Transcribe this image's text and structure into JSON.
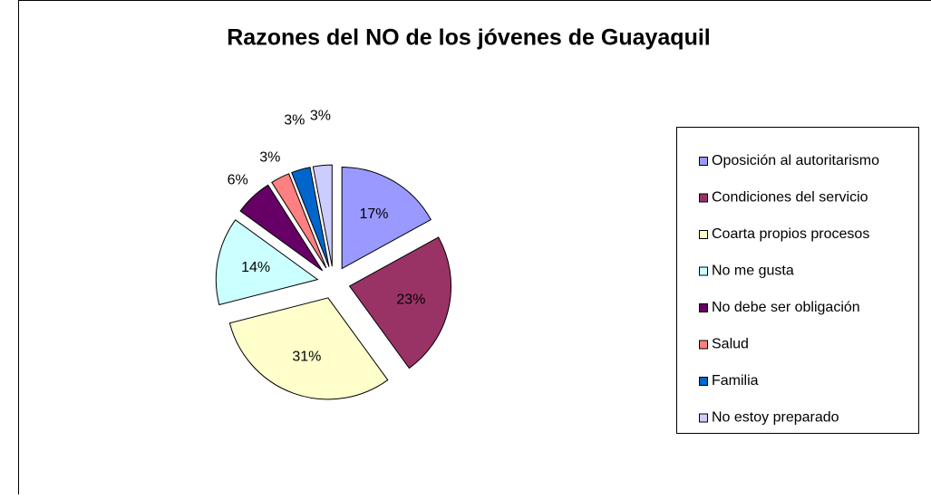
{
  "chart_data": {
    "type": "pie",
    "title": "Razones del NO de los jóvenes de Guayaquil",
    "categories": [
      "Oposición al autoritarismo",
      "Condiciones del servicio",
      "Coarta propios procesos",
      "No me gusta",
      "No debe ser obligación",
      "Salud",
      "Familia",
      "No estoy preparado"
    ],
    "values": [
      17,
      23,
      31,
      14,
      6,
      3,
      3,
      3
    ],
    "value_labels": [
      "17%",
      "23%",
      "31%",
      "14%",
      "6%",
      "3%",
      "3%",
      "3%"
    ],
    "colors": [
      "#9999ff",
      "#993366",
      "#ffffcc",
      "#ccffff",
      "#660066",
      "#ff8080",
      "#0066cc",
      "#ccccff"
    ],
    "legend": "right"
  }
}
